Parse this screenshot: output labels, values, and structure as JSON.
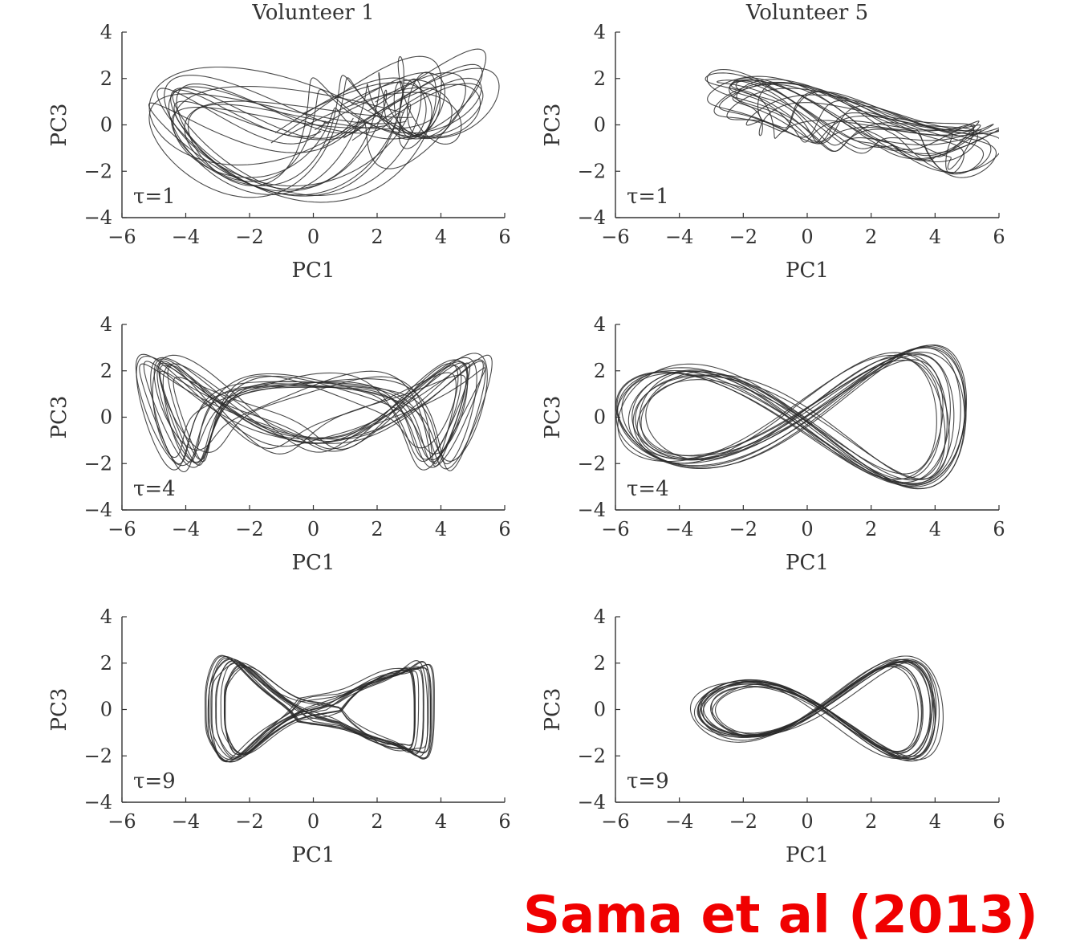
{
  "citation": "Sama et al (2013)",
  "colors": {
    "trace": "#2a2a2a",
    "axis": "#333333",
    "citation": "#f00000"
  },
  "chart_data": [
    {
      "type": "line",
      "title": "Volunteer 1",
      "annotation": "τ=1",
      "xlabel": "PC1",
      "ylabel": "PC3",
      "xlim": [
        -6,
        6
      ],
      "ylim": [
        -4,
        4
      ],
      "xticks": [
        "−6",
        "−4",
        "−2",
        "0",
        "2",
        "4",
        "6"
      ],
      "yticks": [
        "−4",
        "−2",
        "0",
        "2",
        "4"
      ],
      "series": [
        {
          "shape": "noisy trajectories, loose loops extending beyond the top and bottom",
          "center": [
            0.5,
            0
          ],
          "amplitude": [
            3.8,
            2.6
          ],
          "loops": 14
        }
      ]
    },
    {
      "type": "line",
      "title": "Volunteer 5",
      "annotation": "τ=1",
      "xlabel": "PC1",
      "ylabel": "PC3",
      "xlim": [
        -6,
        6
      ],
      "ylim": [
        -4,
        4
      ],
      "xticks": [
        "−6",
        "−4",
        "−2",
        "0",
        "2",
        "4",
        "6"
      ],
      "yticks": [
        "−4",
        "−2",
        "0",
        "2",
        "4"
      ],
      "series": [
        {
          "shape": "band sloping down from (-2,1) to (6,-1)",
          "center": [
            1.5,
            0
          ],
          "amplitude": [
            3.6,
            1.2
          ],
          "loops": 14
        }
      ]
    },
    {
      "type": "line",
      "title": "",
      "annotation": "τ=4",
      "xlabel": "PC1",
      "ylabel": "PC3",
      "xlim": [
        -6,
        6
      ],
      "ylim": [
        -4,
        4
      ],
      "xticks": [
        "−6",
        "−4",
        "−2",
        "0",
        "2",
        "4",
        "6"
      ],
      "yticks": [
        "−4",
        "−2",
        "0",
        "2",
        "4"
      ],
      "series": [
        {
          "shape": "tangled loops",
          "center": [
            0,
            0.2
          ],
          "amplitude": [
            4.8,
            2.4
          ],
          "loops": 14
        }
      ]
    },
    {
      "type": "line",
      "title": "",
      "annotation": "τ=4",
      "xlabel": "PC1",
      "ylabel": "PC3",
      "xlim": [
        -6,
        6
      ],
      "ylim": [
        -4,
        4
      ],
      "xticks": [
        "−6",
        "−4",
        "−2",
        "0",
        "2",
        "4",
        "6"
      ],
      "yticks": [
        "−4",
        "−2",
        "0",
        "2",
        "4"
      ],
      "series": [
        {
          "shape": "figure-eight",
          "center": [
            -0.5,
            0
          ],
          "amplitude": [
            5.0,
            2.7
          ],
          "loops": 14
        }
      ]
    },
    {
      "type": "line",
      "title": "",
      "annotation": "τ=9",
      "xlabel": "PC1",
      "ylabel": "PC3",
      "xlim": [
        -6,
        6
      ],
      "ylim": [
        -4,
        4
      ],
      "xticks": [
        "−6",
        "−4",
        "−2",
        "0",
        "2",
        "4",
        "6"
      ],
      "yticks": [
        "−4",
        "−2",
        "0",
        "2",
        "4"
      ],
      "series": [
        {
          "shape": "rectangular figure-eight",
          "center": [
            0.2,
            0
          ],
          "amplitude": [
            3.3,
            1.9
          ],
          "loops": 14
        }
      ]
    },
    {
      "type": "line",
      "title": "",
      "annotation": "τ=9",
      "xlabel": "PC1",
      "ylabel": "PC3",
      "xlim": [
        -6,
        6
      ],
      "ylim": [
        -4,
        4
      ],
      "xticks": [
        "−6",
        "−4",
        "−2",
        "0",
        "2",
        "4",
        "6"
      ],
      "yticks": [
        "−4",
        "−2",
        "0",
        "2",
        "4"
      ],
      "series": [
        {
          "shape": "figure-eight, wider at right",
          "center": [
            0.3,
            0
          ],
          "amplitude": [
            3.6,
            2.1
          ],
          "loops": 14
        }
      ]
    }
  ]
}
